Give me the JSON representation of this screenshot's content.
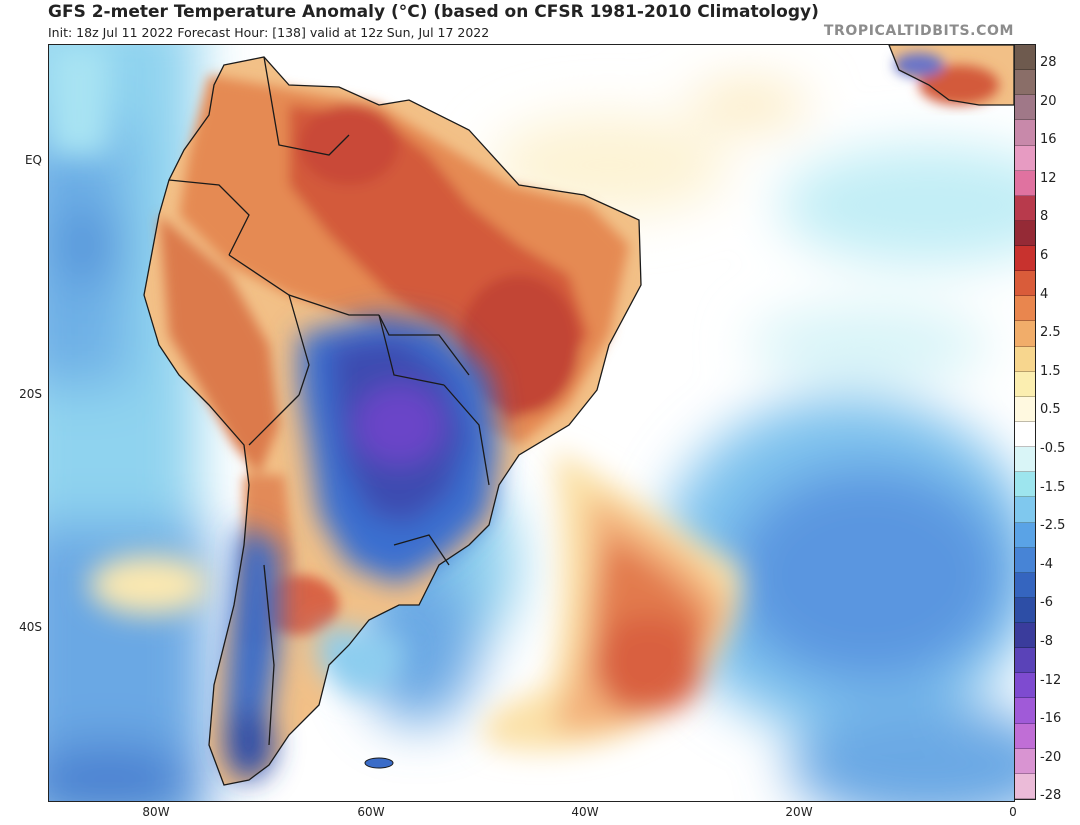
{
  "header": {
    "title": "GFS 2-meter Temperature Anomaly (°C) (based on CFSR 1981-2010 Climatology)",
    "subtitle": "Init: 18z Jul 11 2022   Forecast Hour: [138]   valid at 12z Sun, Jul 17 2022",
    "brand": "TROPICALTIDBITS.COM"
  },
  "map": {
    "region": "South America and South Atlantic",
    "lat_labels": [
      "EQ",
      "20S",
      "40S"
    ],
    "lon_labels": [
      "80W",
      "60W",
      "40W",
      "20W",
      "0"
    ]
  },
  "colorbar": {
    "labels": [
      "28",
      "20",
      "16",
      "12",
      "8",
      "6",
      "4",
      "2.5",
      "1.5",
      "0.5",
      "-0.5",
      "-1.5",
      "-2.5",
      "-4",
      "-6",
      "-8",
      "-12",
      "-16",
      "-20",
      "-28"
    ],
    "colors": [
      "#6e5a4e",
      "#8a6e68",
      "#a07888",
      "#c889aa",
      "#e79bc2",
      "#e072a0",
      "#b83a4c",
      "#952a36",
      "#c8322e",
      "#d95c3a",
      "#e9864e",
      "#f1ad6a",
      "#f7d68e",
      "#fbeeb0",
      "#fff9e0",
      "#ffffff",
      "#d9f5f7",
      "#9de5ee",
      "#7fc8ee",
      "#5aa3e6",
      "#4784d6",
      "#3565bf",
      "#2d4ea6",
      "#3a3c9c",
      "#5a43b8",
      "#7e4bd0",
      "#a05ad8",
      "#c06ed6",
      "#d994d2",
      "#ebbbd8"
    ]
  }
}
